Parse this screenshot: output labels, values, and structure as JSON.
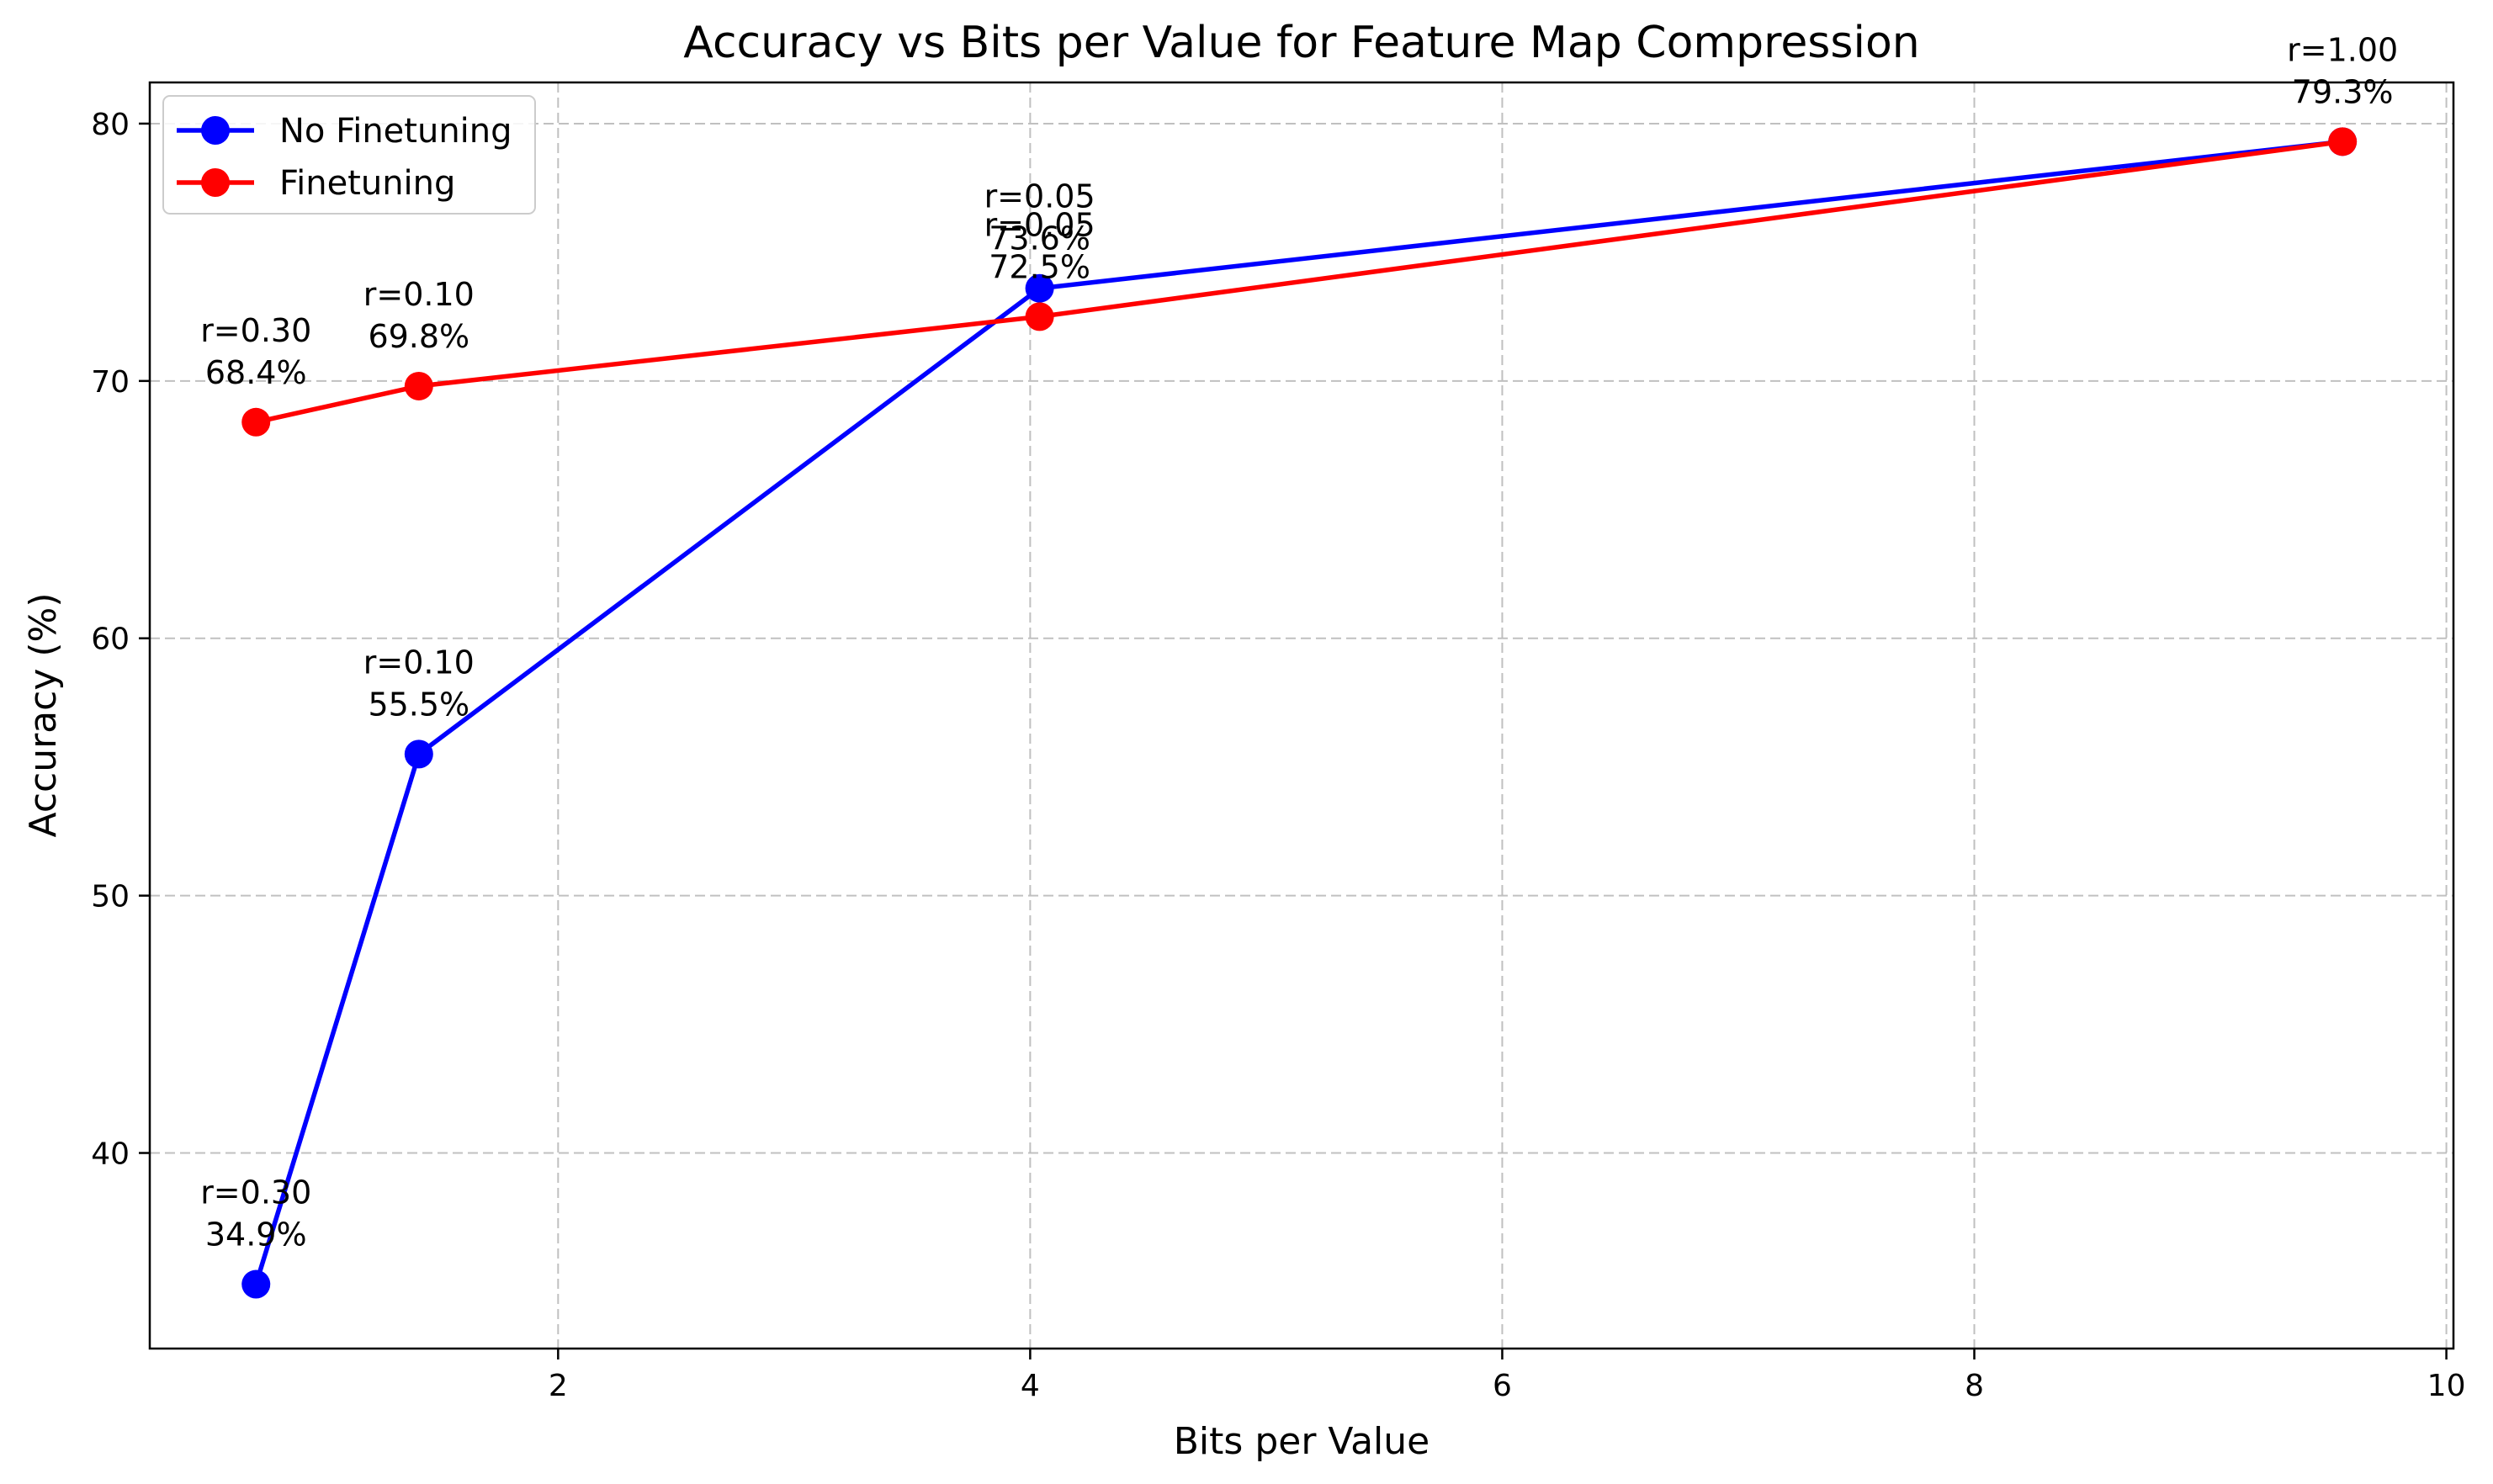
{
  "chart_data": {
    "type": "line",
    "title": "Accuracy vs Bits per Value for Feature Map Compression",
    "xlabel": "Bits per Value",
    "ylabel": "Accuracy (%)",
    "xlim": [
      0.27,
      10.03
    ],
    "ylim": [
      32.4,
      81.6
    ],
    "xticks": [
      2,
      4,
      6,
      8,
      10
    ],
    "yticks": [
      40,
      50,
      60,
      70,
      80
    ],
    "grid": true,
    "legend_position": "upper-left",
    "series": [
      {
        "name": "No Finetuning",
        "color": "#0000ff",
        "points": [
          {
            "x": 0.72,
            "y": 34.9,
            "label_r": "r=0.30",
            "label_acc": "34.9%"
          },
          {
            "x": 1.41,
            "y": 55.5,
            "label_r": "r=0.10",
            "label_acc": "55.5%"
          },
          {
            "x": 4.04,
            "y": 73.6,
            "label_r": "r=0.05",
            "label_acc": "73.6%"
          },
          {
            "x": 9.56,
            "y": 79.3,
            "label_r": "",
            "label_acc": ""
          }
        ]
      },
      {
        "name": "Finetuning",
        "color": "#ff0000",
        "points": [
          {
            "x": 0.72,
            "y": 68.4,
            "label_r": "r=0.30",
            "label_acc": "68.4%"
          },
          {
            "x": 1.41,
            "y": 69.8,
            "label_r": "r=0.10",
            "label_acc": "69.8%"
          },
          {
            "x": 4.04,
            "y": 72.5,
            "label_r": "r=0.05",
            "label_acc": "72.5%"
          },
          {
            "x": 9.56,
            "y": 79.3,
            "label_r": "r=1.00",
            "label_acc": "79.3%"
          }
        ]
      }
    ]
  }
}
